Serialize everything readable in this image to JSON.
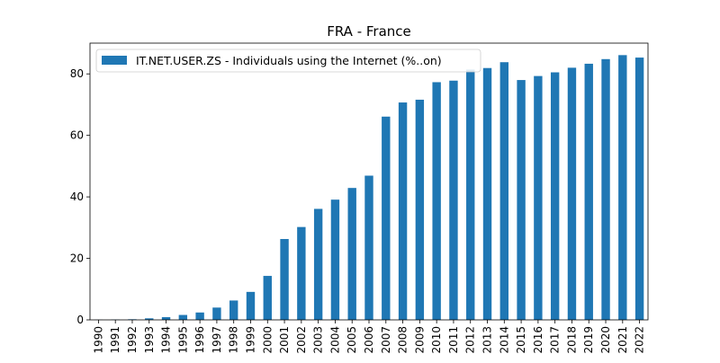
{
  "chart_data": {
    "type": "bar",
    "title": "FRA - France",
    "xlabel": "",
    "ylabel": "",
    "legend_position": "top-left",
    "grid": false,
    "ylim": [
      0,
      90
    ],
    "yticks": [
      0,
      20,
      40,
      60,
      80
    ],
    "bar_color": "#1f77b4",
    "categories": [
      "1990",
      "1991",
      "1992",
      "1993",
      "1994",
      "1995",
      "1996",
      "1997",
      "1998",
      "1999",
      "2000",
      "2001",
      "2002",
      "2003",
      "2004",
      "2005",
      "2006",
      "2007",
      "2008",
      "2009",
      "2010",
      "2011",
      "2012",
      "2013",
      "2014",
      "2015",
      "2016",
      "2017",
      "2018",
      "2019",
      "2020",
      "2021",
      "2022"
    ],
    "series": [
      {
        "name": "IT.NET.USER.ZS - Individuals using the Internet (%..on)",
        "values": [
          0.05,
          0.1,
          0.2,
          0.5,
          0.9,
          1.6,
          2.4,
          4.0,
          6.3,
          9.1,
          14.3,
          26.3,
          30.2,
          36.1,
          39.1,
          42.9,
          46.9,
          66.1,
          70.7,
          71.6,
          77.3,
          77.8,
          81.4,
          81.9,
          83.8,
          78.0,
          79.3,
          80.5,
          82.0,
          83.3,
          84.8,
          86.1,
          85.3
        ]
      }
    ]
  }
}
